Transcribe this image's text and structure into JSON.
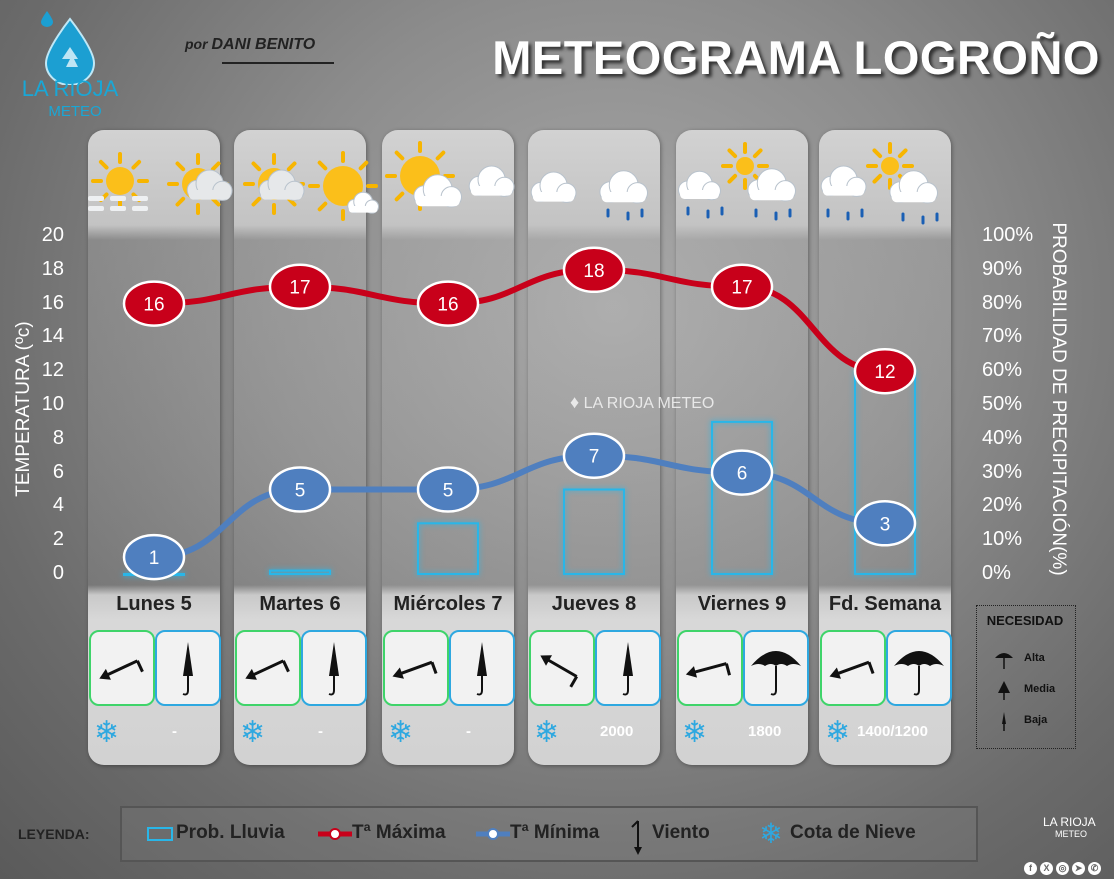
{
  "branding": {
    "logo_line1": "LA RIOJA",
    "logo_line2": "METEO",
    "author_prefix": "por",
    "author_name": "DANI BENITO",
    "watermark": "LA RIOJA METEO",
    "social_icons": [
      "facebook-icon",
      "x-icon",
      "instagram-icon",
      "telegram-icon",
      "whatsapp-icon"
    ]
  },
  "title": "METEOGRAMA LOGROÑO",
  "days": [
    {
      "label": "Lunes 5",
      "weather_icons": [
        "sun-icon",
        "fog-icon",
        "partly-cloudy-icon"
      ],
      "wind_icon": "wind-arrow-icon",
      "umbrella": "closed-umbrella-icon",
      "snow_level": "-"
    },
    {
      "label": "Martes 6",
      "weather_icons": [
        "partly-cloudy-icon",
        "sun-icon"
      ],
      "wind_icon": "wind-arrow-icon",
      "umbrella": "closed-umbrella-icon",
      "snow_level": "-"
    },
    {
      "label": "Miércoles 7",
      "weather_icons": [
        "sun-icon",
        "cloud-icon"
      ],
      "wind_icon": "wind-arrow-icon",
      "umbrella": "closed-umbrella-icon",
      "snow_level": "-"
    },
    {
      "label": "Jueves 8",
      "weather_icons": [
        "partly-cloudy-icon",
        "drizzle-icon"
      ],
      "wind_icon": "wind-arrow-icon",
      "umbrella": "closed-umbrella-icon",
      "snow_level": "2000"
    },
    {
      "label": "Viernes 9",
      "weather_icons": [
        "partly-cloudy-rain-icon",
        "rain-icon"
      ],
      "wind_icon": "wind-arrow-icon",
      "umbrella": "open-umbrella-icon",
      "snow_level": "1800"
    },
    {
      "label": "Fd. Semana",
      "weather_icons": [
        "rain-icon",
        "partly-cloudy-rain-icon"
      ],
      "wind_icon": "wind-arrow-icon",
      "umbrella": "open-umbrella-icon",
      "snow_level": "1400/1200"
    }
  ],
  "chart_data": {
    "type": "line",
    "categories": [
      "Lunes 5",
      "Martes 6",
      "Miércoles 7",
      "Jueves 8",
      "Viernes 9",
      "Fd. Semana"
    ],
    "series": [
      {
        "name": "Tª Máxima",
        "type": "line",
        "axis": "left",
        "color": "#c8001a",
        "values": [
          16,
          17,
          16,
          18,
          17,
          12
        ]
      },
      {
        "name": "Tª Mínima",
        "type": "line",
        "axis": "left",
        "color": "#4f7fbf",
        "values": [
          1,
          5,
          5,
          7,
          6,
          3
        ]
      },
      {
        "name": "Prob. Lluvia",
        "type": "bar",
        "axis": "right",
        "color": "#29b6e8",
        "values": [
          0,
          1,
          15,
          25,
          45,
          60
        ]
      }
    ],
    "ylabel": "TEMPERATURA (ºc)",
    "ylabel_right": "PROBABILIDAD DE PRECIPITACIÓN(%)",
    "ylim": [
      0,
      20
    ],
    "ylim_right": [
      0,
      100
    ],
    "yticks": [
      "20",
      "18",
      "16",
      "14",
      "12",
      "10",
      "8",
      "6",
      "4",
      "2",
      "0"
    ],
    "yticks_right": [
      "100%",
      "90%",
      "80%",
      "70%",
      "60%",
      "50%",
      "40%",
      "30%",
      "20%",
      "10%",
      "0%"
    ],
    "grid": false
  },
  "necesidad": {
    "title": "NECESIDAD",
    "items": [
      {
        "label": "Alta",
        "icon": "open-umbrella-icon"
      },
      {
        "label": "Media",
        "icon": "half-open-umbrella-icon"
      },
      {
        "label": "Baja",
        "icon": "closed-umbrella-icon"
      }
    ]
  },
  "legend": {
    "label": "LEYENDA:",
    "items": [
      {
        "label": "Prob. Lluvia",
        "icon": "rain-bar-icon"
      },
      {
        "label": "Tª Máxima",
        "icon": "max-temp-line-icon"
      },
      {
        "label": "Tª Mínima",
        "icon": "min-temp-line-icon"
      },
      {
        "label": "Viento",
        "icon": "wind-arrow-icon"
      },
      {
        "label": "Cota de Nieve",
        "icon": "snowflake-icon"
      }
    ]
  },
  "colors": {
    "max_temp": "#c8001a",
    "min_temp": "#4f7fbf",
    "rain": "#29b6e8",
    "wind_border": "#3fd46a",
    "umbrella_border": "#2ea8e0"
  }
}
